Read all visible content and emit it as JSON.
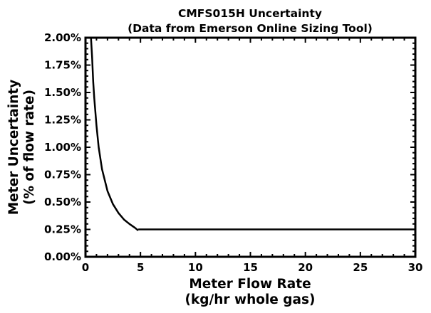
{
  "chart_data": {
    "type": "line",
    "title_line1": "CMFS015H Uncertainty",
    "title_line2": "(Data from Emerson Online Sizing Tool)",
    "xlabel_line1": "Meter Flow Rate",
    "xlabel_line2": "(kg/hr whole gas)",
    "ylabel_line1": "Meter Uncertainty",
    "ylabel_line2": "(% of flow rate)",
    "xlim": [
      0,
      30
    ],
    "ylim": [
      0.0,
      2.0
    ],
    "x_ticks": [
      0,
      5,
      10,
      15,
      20,
      25,
      30
    ],
    "x_tick_labels": [
      "0",
      "5",
      "10",
      "15",
      "20",
      "25",
      "30"
    ],
    "y_ticks": [
      0.0,
      0.25,
      0.5,
      0.75,
      1.0,
      1.25,
      1.5,
      1.75,
      2.0
    ],
    "y_tick_labels": [
      "0.00%",
      "0.25%",
      "0.50%",
      "0.75%",
      "1.00%",
      "1.25%",
      "1.50%",
      "1.75%",
      "2.00%"
    ],
    "grid": false,
    "line_color": "#000000",
    "series": [
      {
        "segments": [
          {
            "x": [
              0.5,
              0.6,
              0.7,
              0.8,
              1.0,
              1.2,
              1.5,
              2.0,
              2.5,
              3.0,
              3.5,
              4.0,
              4.5,
              4.8
            ],
            "y": [
              2.0,
              1.82,
              1.6,
              1.45,
              1.2,
              1.0,
              0.8,
              0.6,
              0.48,
              0.4,
              0.34,
              0.3,
              0.265,
              0.24
            ]
          },
          {
            "x": [
              4.8,
              30
            ],
            "y": [
              0.25,
              0.25
            ]
          }
        ]
      }
    ]
  }
}
